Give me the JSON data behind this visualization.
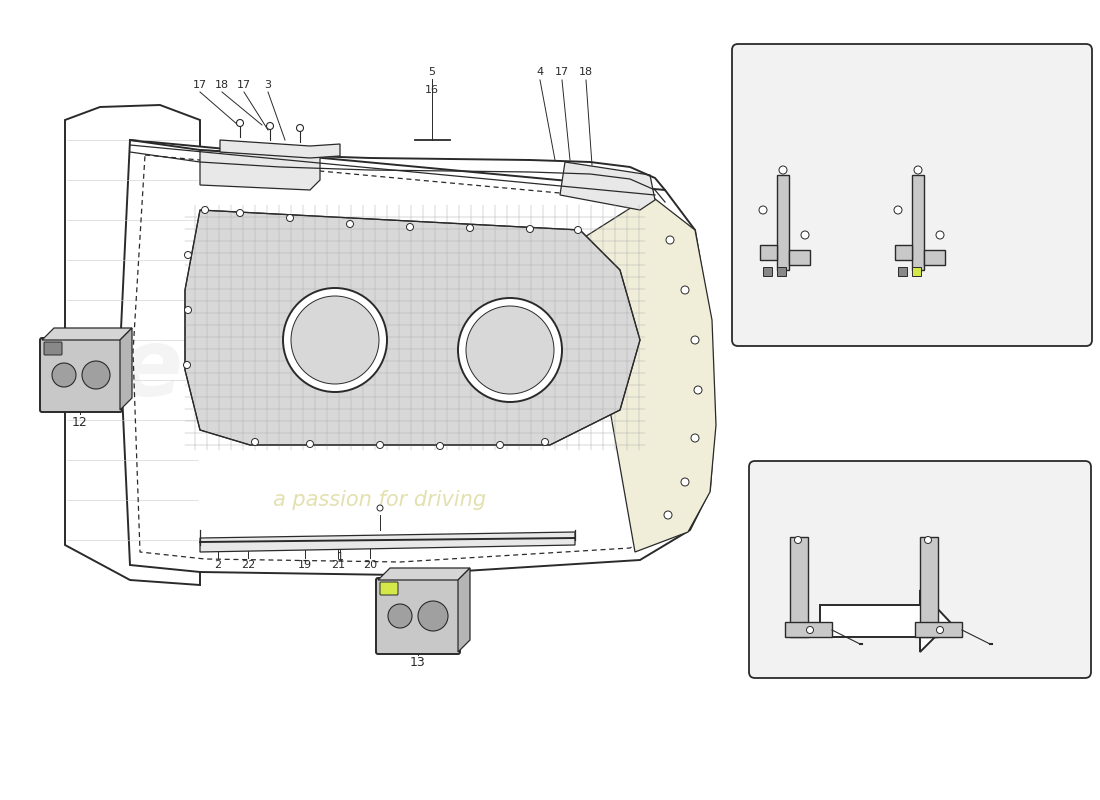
{
  "bg_color": "#ffffff",
  "line_color": "#2a2a2a",
  "gray_fill": "#c8c8c8",
  "mesh_fill": "#d8d8d8",
  "light_gray": "#e8e8e8",
  "yellow_hl": "#d4e84a",
  "inset_bg": "#f2f2f2",
  "fs_lbl": 9,
  "fs_sm": 8,
  "lw_main": 1.4,
  "lw_thin": 0.9,
  "lw_fine": 0.6
}
